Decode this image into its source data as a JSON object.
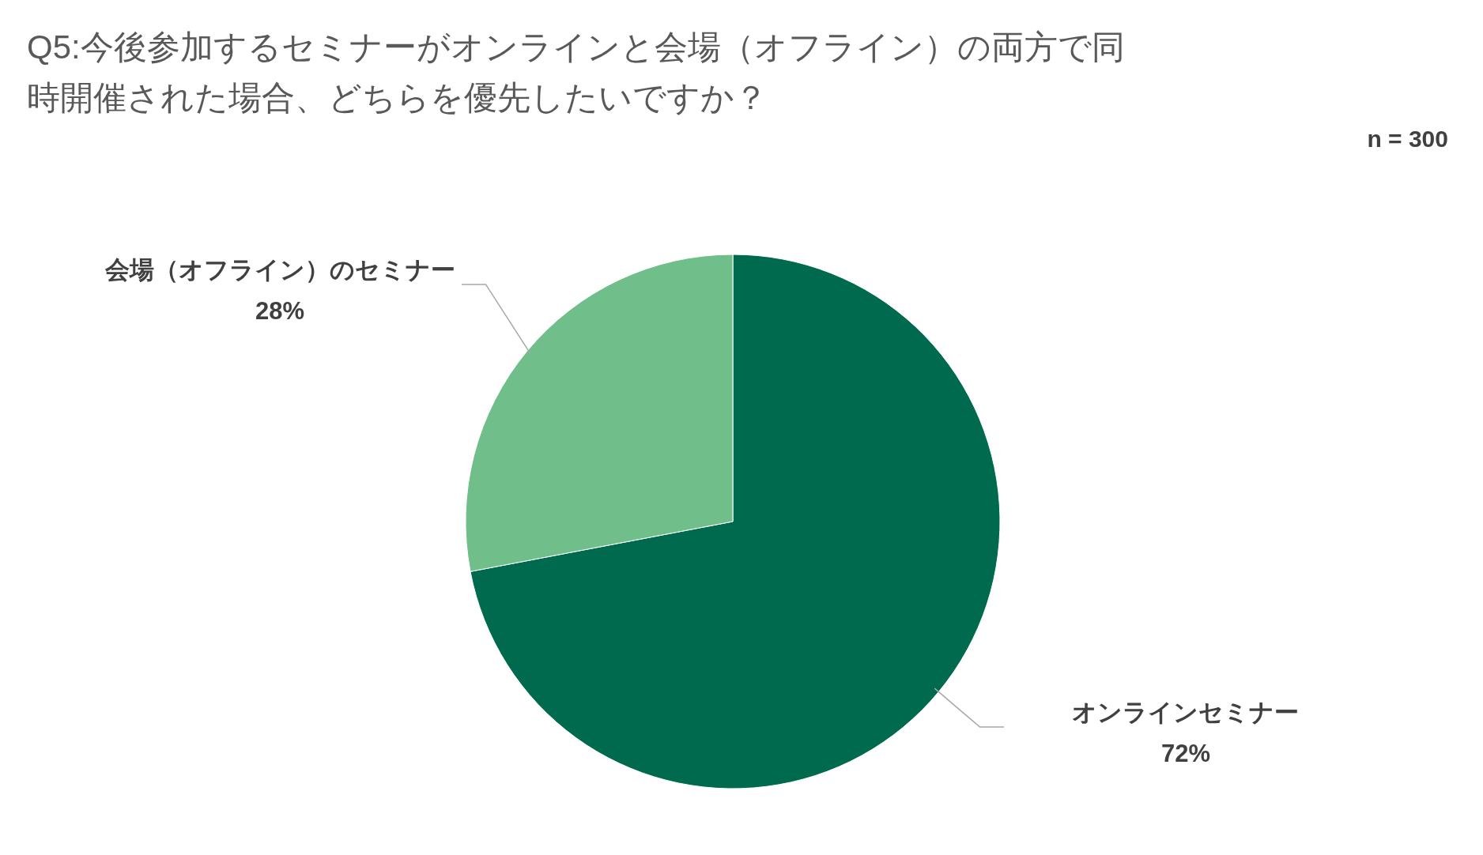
{
  "chart_data": {
    "type": "pie",
    "title": "Q5:今後参加するセミナーがオンラインと会場（オフライン）の両方で同時開催された場合、どちらを優先したいですか？",
    "annotations": [
      "n = 300"
    ],
    "categories": [
      "オンラインセミナー",
      "会場（オフライン）のセミナー"
    ],
    "values": [
      72,
      28
    ],
    "value_labels": [
      "72%",
      "28%"
    ],
    "colors": [
      "#006a4e",
      "#70bf8a"
    ]
  }
}
